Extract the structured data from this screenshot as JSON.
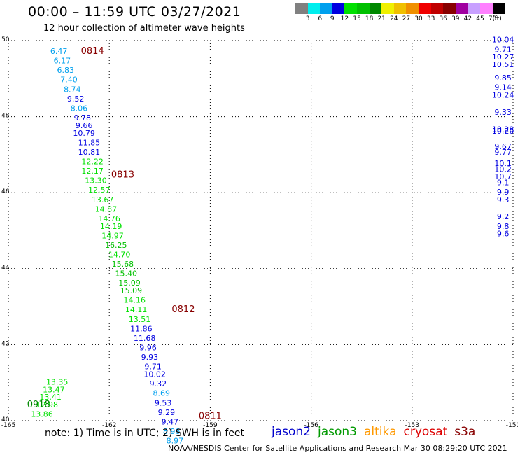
{
  "title": "00:00 – 11:59 UTC 03/27/2021",
  "subtitle": "12 hour collection of altimeter wave heights",
  "legend": {
    "unit": "(ft)",
    "bins": [
      {
        "label": "3",
        "color": "#808080"
      },
      {
        "label": "6",
        "color": "#00eeee"
      },
      {
        "label": "9",
        "color": "#00a0ee"
      },
      {
        "label": "12",
        "color": "#0000e0"
      },
      {
        "label": "15",
        "color": "#00e000"
      },
      {
        "label": "18",
        "color": "#00c000"
      },
      {
        "label": "21",
        "color": "#008800"
      },
      {
        "label": "24",
        "color": "#f0f000"
      },
      {
        "label": "27",
        "color": "#f0c000"
      },
      {
        "label": "30",
        "color": "#f09000"
      },
      {
        "label": "33",
        "color": "#f00000"
      },
      {
        "label": "36",
        "color": "#c00000"
      },
      {
        "label": "39",
        "color": "#880000"
      },
      {
        "label": "42",
        "color": "#a000a0"
      },
      {
        "label": "45",
        "color": "#c8a0ff"
      },
      {
        "label": "70",
        "color": "#ff80ff"
      },
      {
        "label": "",
        "color": "#000000"
      }
    ]
  },
  "note": "note:  1) Time is in UTC;  2) SWH is in feet",
  "credit": "NOAA/NESDIS Center for Satellite Applications and Research     Mar 30 08:29:20 UTC 2021",
  "satellites": [
    {
      "name": "jason2",
      "color": "#0000cc"
    },
    {
      "name": "jason3",
      "color": "#009900"
    },
    {
      "name": "altika",
      "color": "#ff9900"
    },
    {
      "name": "cryosat",
      "color": "#dd0000"
    },
    {
      "name": "s3a",
      "color": "#880000"
    }
  ],
  "chart_data": {
    "type": "scatter",
    "xlim": [
      -165,
      -150
    ],
    "ylim": [
      40,
      50
    ],
    "x_ticks": [
      "-165",
      "-162",
      "-159",
      "-156",
      "-153",
      "-150"
    ],
    "y_ticks": [
      "40",
      "42",
      "44",
      "46",
      "48",
      "50"
    ],
    "grid": true,
    "color_scale_ft": [
      3,
      6,
      9,
      12,
      15,
      18,
      21,
      24,
      27,
      30,
      33,
      36,
      39,
      42,
      45,
      70
    ],
    "time_labels": [
      {
        "label": "0814",
        "lon": -162.5,
        "lat": 49.65
      },
      {
        "label": "0813",
        "lon": -161.6,
        "lat": 46.4
      },
      {
        "label": "0812",
        "lon": -159.8,
        "lat": 42.85
      },
      {
        "label": "0811",
        "lon": -159.0,
        "lat": 40.05
      },
      {
        "label": "0918",
        "lon": -164.1,
        "lat": 40.35
      }
    ],
    "points": [
      {
        "lon": -163.5,
        "lat": 49.65,
        "swh": "6.47"
      },
      {
        "lon": -163.4,
        "lat": 49.4,
        "swh": "6.17"
      },
      {
        "lon": -163.3,
        "lat": 49.15,
        "swh": "6.83"
      },
      {
        "lon": -163.2,
        "lat": 48.9,
        "swh": "7.40"
      },
      {
        "lon": -163.1,
        "lat": 48.65,
        "swh": "8.74"
      },
      {
        "lon": -163.0,
        "lat": 48.4,
        "swh": "9.52"
      },
      {
        "lon": -162.9,
        "lat": 48.15,
        "swh": "8.06"
      },
      {
        "lon": -162.8,
        "lat": 47.9,
        "swh": "9.78"
      },
      {
        "lon": -162.75,
        "lat": 47.7,
        "swh": "9.66"
      },
      {
        "lon": -162.75,
        "lat": 47.5,
        "swh": "10.79"
      },
      {
        "lon": -162.6,
        "lat": 47.25,
        "swh": "11.85"
      },
      {
        "lon": -162.6,
        "lat": 47.0,
        "swh": "10.81"
      },
      {
        "lon": -162.5,
        "lat": 46.75,
        "swh": "12.22"
      },
      {
        "lon": -162.5,
        "lat": 46.5,
        "swh": "12.17"
      },
      {
        "lon": -162.4,
        "lat": 46.25,
        "swh": "13.30"
      },
      {
        "lon": -162.3,
        "lat": 46.0,
        "swh": "12.57"
      },
      {
        "lon": -162.2,
        "lat": 45.75,
        "swh": "13.67"
      },
      {
        "lon": -162.1,
        "lat": 45.5,
        "swh": "14.87"
      },
      {
        "lon": -162.0,
        "lat": 45.25,
        "swh": "14.76"
      },
      {
        "lon": -161.95,
        "lat": 45.05,
        "swh": "14.19"
      },
      {
        "lon": -161.9,
        "lat": 44.8,
        "swh": "14.97"
      },
      {
        "lon": -161.8,
        "lat": 44.55,
        "swh": "16.25"
      },
      {
        "lon": -161.7,
        "lat": 44.3,
        "swh": "14.70"
      },
      {
        "lon": -161.6,
        "lat": 44.05,
        "swh": "15.68"
      },
      {
        "lon": -161.5,
        "lat": 43.8,
        "swh": "15.40"
      },
      {
        "lon": -161.4,
        "lat": 43.55,
        "swh": "15.09"
      },
      {
        "lon": -161.35,
        "lat": 43.35,
        "swh": "15.09"
      },
      {
        "lon": -161.25,
        "lat": 43.1,
        "swh": "14.16"
      },
      {
        "lon": -161.2,
        "lat": 42.85,
        "swh": "14.11"
      },
      {
        "lon": -161.1,
        "lat": 42.6,
        "swh": "13.51"
      },
      {
        "lon": -161.05,
        "lat": 42.35,
        "swh": "11.86"
      },
      {
        "lon": -160.95,
        "lat": 42.1,
        "swh": "11.68"
      },
      {
        "lon": -160.85,
        "lat": 41.85,
        "swh": "9.96"
      },
      {
        "lon": -160.8,
        "lat": 41.6,
        "swh": "9.93"
      },
      {
        "lon": -160.7,
        "lat": 41.35,
        "swh": "9.71"
      },
      {
        "lon": -160.65,
        "lat": 41.15,
        "swh": "10.02"
      },
      {
        "lon": -160.55,
        "lat": 40.9,
        "swh": "9.32"
      },
      {
        "lon": -160.45,
        "lat": 40.65,
        "swh": "8.69"
      },
      {
        "lon": -160.4,
        "lat": 40.4,
        "swh": "9.53"
      },
      {
        "lon": -160.3,
        "lat": 40.15,
        "swh": "9.29"
      },
      {
        "lon": -160.2,
        "lat": 39.9,
        "swh": "9.47"
      },
      {
        "lon": -160.15,
        "lat": 39.65,
        "swh": "8.96"
      },
      {
        "lon": -160.05,
        "lat": 39.4,
        "swh": "8.97"
      },
      {
        "lon": -163.55,
        "lat": 40.95,
        "swh": "13.35"
      },
      {
        "lon": -163.65,
        "lat": 40.75,
        "swh": "13.47"
      },
      {
        "lon": -163.75,
        "lat": 40.55,
        "swh": "13.41"
      },
      {
        "lon": -163.85,
        "lat": 40.35,
        "swh": "12.98"
      },
      {
        "lon": -164.0,
        "lat": 40.1,
        "swh": "13.86"
      },
      {
        "lon": -150.3,
        "lat": 49.95,
        "swh": "10.04"
      },
      {
        "lon": -150.3,
        "lat": 49.7,
        "swh": "9.71"
      },
      {
        "lon": -150.3,
        "lat": 49.5,
        "swh": "10.27"
      },
      {
        "lon": -150.3,
        "lat": 49.3,
        "swh": "10.51"
      },
      {
        "lon": -150.3,
        "lat": 48.95,
        "swh": "9.85"
      },
      {
        "lon": -150.3,
        "lat": 48.7,
        "swh": "9.14"
      },
      {
        "lon": -150.3,
        "lat": 48.5,
        "swh": "10.24"
      },
      {
        "lon": -150.3,
        "lat": 48.05,
        "swh": "9.33"
      },
      {
        "lon": -150.3,
        "lat": 47.6,
        "swh": "10.28"
      },
      {
        "lon": -150.3,
        "lat": 47.55,
        "swh": "10.20"
      },
      {
        "lon": -150.3,
        "lat": 47.15,
        "swh": "9.67"
      },
      {
        "lon": -150.3,
        "lat": 47.0,
        "swh": "9.77"
      },
      {
        "lon": -150.3,
        "lat": 46.7,
        "swh": "10.1"
      },
      {
        "lon": -150.3,
        "lat": 46.55,
        "swh": "10.2"
      },
      {
        "lon": -150.3,
        "lat": 46.35,
        "swh": "10.7"
      },
      {
        "lon": -150.3,
        "lat": 46.2,
        "swh": "9.1"
      },
      {
        "lon": -150.3,
        "lat": 45.95,
        "swh": "9.9"
      },
      {
        "lon": -150.3,
        "lat": 45.75,
        "swh": "9.3"
      },
      {
        "lon": -150.3,
        "lat": 45.3,
        "swh": "9.2"
      },
      {
        "lon": -150.3,
        "lat": 45.05,
        "swh": "9.8"
      },
      {
        "lon": -150.3,
        "lat": 44.85,
        "swh": "9.6"
      }
    ]
  }
}
